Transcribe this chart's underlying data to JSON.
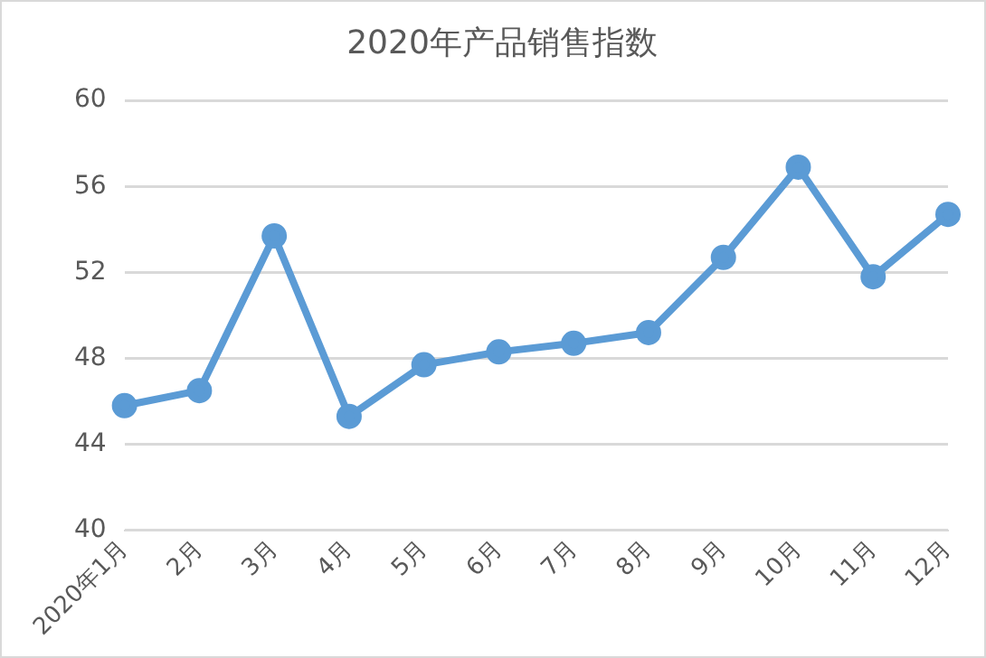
{
  "chart_data": {
    "type": "line",
    "title": "2020年产品销售指数",
    "categories": [
      "2020年1月",
      "2月",
      "3月",
      "4月",
      "5月",
      "6月",
      "7月",
      "8月",
      "9月",
      "10月",
      "11月",
      "12月"
    ],
    "series": [
      {
        "color": "#5b9bd5",
        "values": [
          45.8,
          46.5,
          53.7,
          45.3,
          47.7,
          48.3,
          48.7,
          49.2,
          52.7,
          56.9,
          51.8,
          54.7
        ]
      }
    ],
    "ylim": [
      40,
      60
    ],
    "yticks": [
      40,
      44,
      48,
      52,
      56,
      60
    ],
    "grid": "y",
    "marker": "circle",
    "line_style": "solid"
  }
}
